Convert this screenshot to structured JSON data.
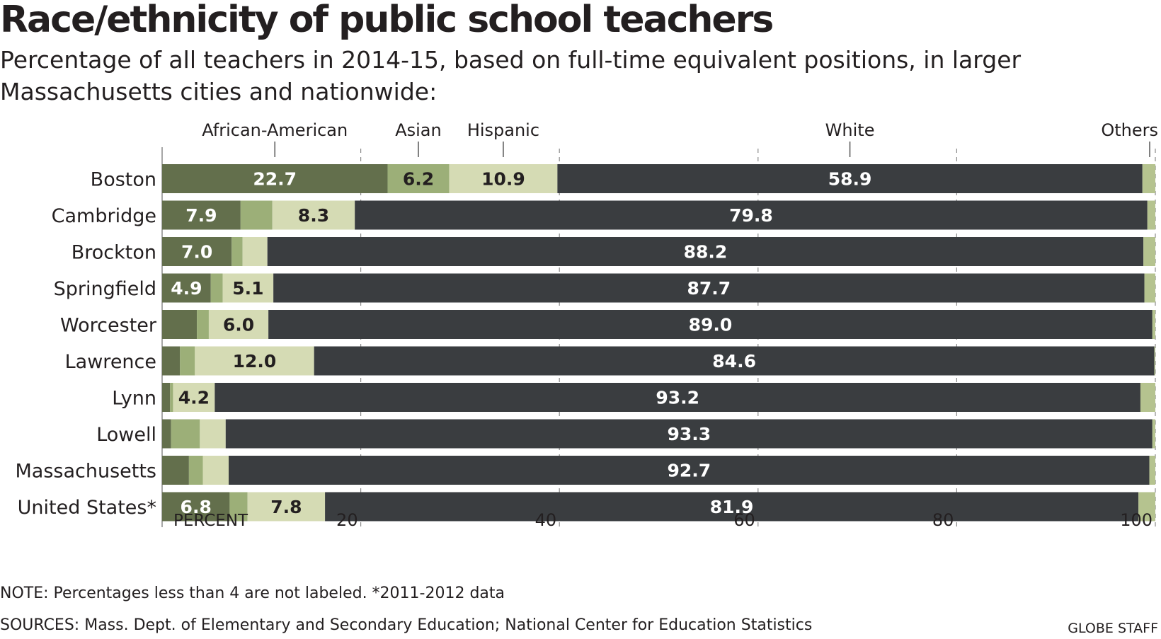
{
  "title": "Race/ethnicity of public school teachers",
  "subtitle": "Percentage of all teachers in 2014-15, based on full-time equivalent positions, in larger Massachusetts cities and nationwide:",
  "note": "NOTE: Percentages less than 4 are not labeled.   *2011-2012 data",
  "sources": "SOURCES: Mass. Dept. of Elementary and Secondary Education; National Center for Education Statistics",
  "credit": "GLOBE STAFF",
  "colors": {
    "African-American": "#636f4c",
    "Asian": "#9caf78",
    "Hispanic": "#d5dbb4",
    "White": "#3a3d40",
    "Others": "#b5c38f"
  },
  "chart_data": {
    "type": "bar",
    "orientation": "horizontal",
    "stacked": true,
    "categories": [
      "Boston",
      "Cambridge",
      "Brockton",
      "Springfield",
      "Worcester",
      "Lawrence",
      "Lynn",
      "Lowell",
      "Massachusetts",
      "United States*"
    ],
    "series": [
      {
        "name": "African-American",
        "values": [
          22.7,
          7.9,
          7.0,
          4.9,
          3.5,
          1.8,
          0.8,
          0.9,
          2.7,
          6.8
        ]
      },
      {
        "name": "Asian",
        "values": [
          6.2,
          3.2,
          1.1,
          1.2,
          1.2,
          1.5,
          0.3,
          2.9,
          1.4,
          1.8
        ]
      },
      {
        "name": "Hispanic",
        "values": [
          10.9,
          8.3,
          2.5,
          5.1,
          6.0,
          12.0,
          4.2,
          2.6,
          2.6,
          7.8
        ]
      },
      {
        "name": "White",
        "values": [
          58.9,
          79.8,
          88.2,
          87.7,
          89.0,
          84.6,
          93.2,
          93.3,
          92.7,
          81.9
        ]
      },
      {
        "name": "Others",
        "values": [
          1.3,
          0.8,
          1.2,
          1.1,
          0.3,
          0.1,
          1.5,
          0.3,
          0.6,
          1.7
        ]
      }
    ],
    "label_threshold": 4,
    "xlabel": "PERCENT",
    "xlim": [
      0,
      100
    ],
    "xticks": [
      20,
      40,
      60,
      80,
      100
    ],
    "grid": true,
    "legend": "top"
  }
}
